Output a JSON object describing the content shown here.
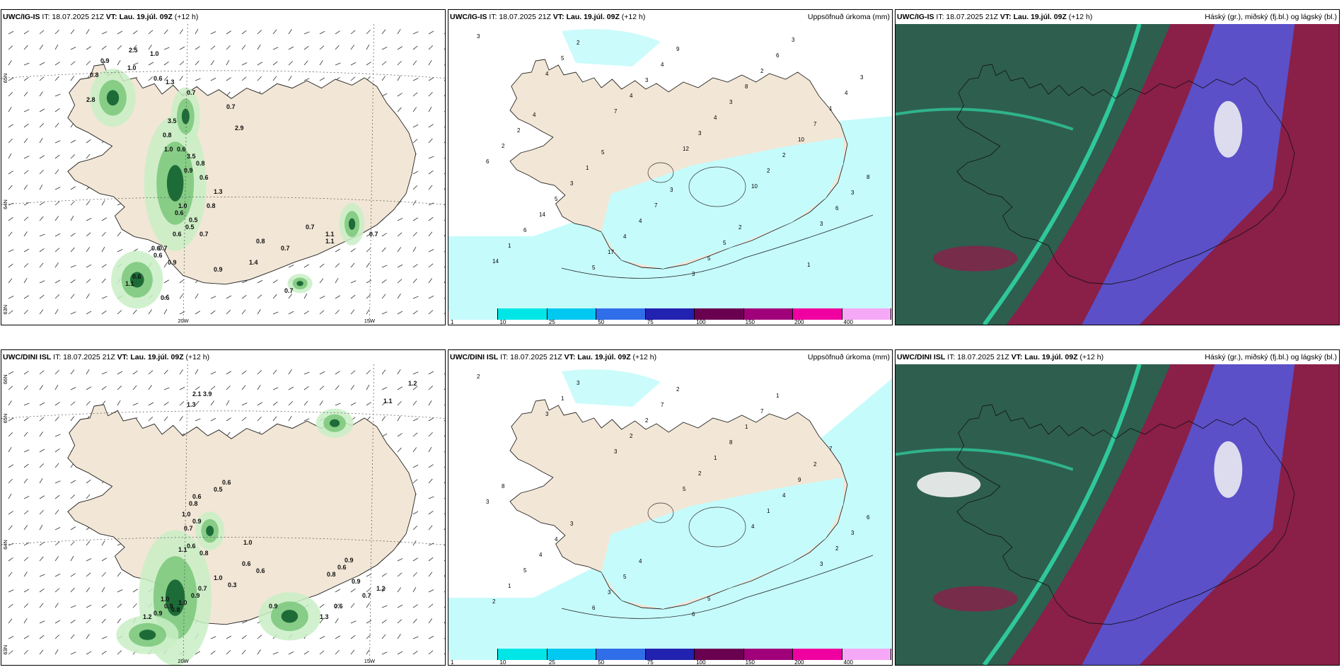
{
  "panels": [
    {
      "id": "igis-wind",
      "title_model": "UWC/IG-IS",
      "title_it": "IT: 18.07.2025 21Z",
      "title_vt": "VT: Lau. 19.júl. 09Z",
      "title_lead": "(+12 h)",
      "right_title": "",
      "values": [
        "2.5",
        "1.0",
        "0.9",
        "0.8",
        "1.0",
        "0.6",
        "2.8",
        "1.3",
        "0.7",
        "3.5",
        "0.8",
        "0.6",
        "0.7",
        "2.9",
        "1.0",
        "3.5",
        "0.8",
        "0.9",
        "0.6",
        "1.3",
        "0.8",
        "0.5",
        "0.6",
        "0.7",
        "0.6",
        "0.9",
        "0.5",
        "0.6",
        "1.0",
        "0.7",
        "0.6",
        "0.9",
        "0.7",
        "1.1",
        "0.8",
        "0.7",
        "0.6",
        "1.1",
        "0.6",
        "0.7",
        "1.4",
        "0.7",
        "1.1"
      ],
      "axis_labels": [
        "65N",
        "64N",
        "63N",
        "20W",
        "15W"
      ]
    },
    {
      "id": "igis-precip",
      "title_model": "UWC/IG-IS",
      "title_it": "IT: 18.07.2025 21Z",
      "title_vt": "VT: Lau. 19.júl. 09Z",
      "title_lead": "(+12 h)",
      "right_title": "Uppsöfnuð úrkoma (mm)",
      "values": [
        "3",
        "4",
        "7",
        "12",
        "10",
        "3",
        "14",
        "5",
        "4",
        "3",
        "2",
        "6",
        "1",
        "2",
        "3",
        "4",
        "2",
        "3",
        "6",
        "5",
        "4",
        "3",
        "10",
        "8",
        "14",
        "17",
        "9",
        "8",
        "7",
        "6",
        "5",
        "4",
        "3",
        "2",
        "1",
        "2",
        "3",
        "4",
        "5",
        "6",
        "4",
        "2",
        "1",
        "7",
        "5",
        "3",
        "3",
        "4",
        "5",
        "3",
        "2",
        "1"
      ],
      "colorbar": [
        "1",
        "10",
        "25",
        "50",
        "75",
        "100",
        "150",
        "200",
        "400"
      ]
    },
    {
      "id": "igis-cloud",
      "title_model": "UWC/IG-IS",
      "title_it": "IT: 18.07.2025 21Z",
      "title_vt": "VT: Lau. 19.júl. 09Z",
      "title_lead": "(+12 h)",
      "right_title": "Háský (gr.), miðský (fj.bl.) og lágský (bl.)"
    },
    {
      "id": "dini-wind",
      "title_model": "UWC/DINI ISL",
      "title_it": "IT: 18.07.2025 21Z",
      "title_vt": "VT: Lau. 19.júl. 09Z",
      "title_lead": "(+12 h)",
      "right_title": "",
      "values": [
        "1.2",
        "2.1",
        "3.9",
        "1.3",
        "1.1",
        "0.6",
        "0.5",
        "0.6",
        "0.8",
        "1.0",
        "0.9",
        "0.7",
        "0.6",
        "1.0",
        "1.1",
        "0.8",
        "0.6",
        "0.6",
        "1.0",
        "0.3",
        "0.7",
        "0.9",
        "1.0",
        "0.8",
        "0.9",
        "1.0",
        "0.9",
        "1.2",
        "0.9",
        "0.6",
        "0.7",
        "1.2",
        "0.9",
        "0.8",
        "0.6",
        "0.9",
        "1.3"
      ],
      "axis_labels": [
        "66N",
        "65N",
        "64N",
        "63N",
        "20W",
        "15W"
      ]
    },
    {
      "id": "dini-precip",
      "title_model": "UWC/DINI ISL",
      "title_it": "IT: 18.07.2025 21Z",
      "title_vt": "VT: Lau. 19.júl. 09Z",
      "title_lead": "(+12 h)",
      "right_title": "Uppsöfnuð úrkoma (mm)",
      "values": [
        "2",
        "3",
        "3",
        "5",
        "4",
        "3",
        "2",
        "1",
        "2",
        "2",
        "1",
        "2",
        "1",
        "3",
        "2",
        "1",
        "4",
        "3",
        "5",
        "6",
        "7",
        "8",
        "9",
        "6",
        "4",
        "3",
        "2",
        "1",
        "2",
        "3",
        "4",
        "5",
        "6",
        "7",
        "7",
        "8",
        "3",
        "4",
        "5",
        "1"
      ],
      "colorbar": [
        "1",
        "10",
        "25",
        "50",
        "75",
        "100",
        "150",
        "200",
        "400"
      ]
    },
    {
      "id": "dini-cloud",
      "title_model": "UWC/DINI ISL",
      "title_it": "IT: 18.07.2025 21Z",
      "title_vt": "VT: Lau. 19.júl. 09Z",
      "title_lead": "(+12 h)",
      "right_title": "Háský (gr.), miðský (fj.bl.) og lágský (bl.)"
    }
  ],
  "colorbar_colors": [
    "#c6fbfb",
    "#00e6e6",
    "#00c8f0",
    "#2f6ee8",
    "#2222b0",
    "#6a0050",
    "#a0007a",
    "#f000a0",
    "#f5a8f5"
  ],
  "colors": {
    "land": "#f2e6d6",
    "precip_light": "#c6fbfb",
    "green_light": "#c9efc6",
    "green_mid": "#74c476",
    "green_dark": "#0a5b2a",
    "cloud_dark": "#2e5e4e",
    "cloud_teal": "#2fc89a",
    "cloud_maroon": "#8a1f48",
    "cloud_blue": "#5b50c8",
    "cloud_white": "#f4f4f4"
  }
}
